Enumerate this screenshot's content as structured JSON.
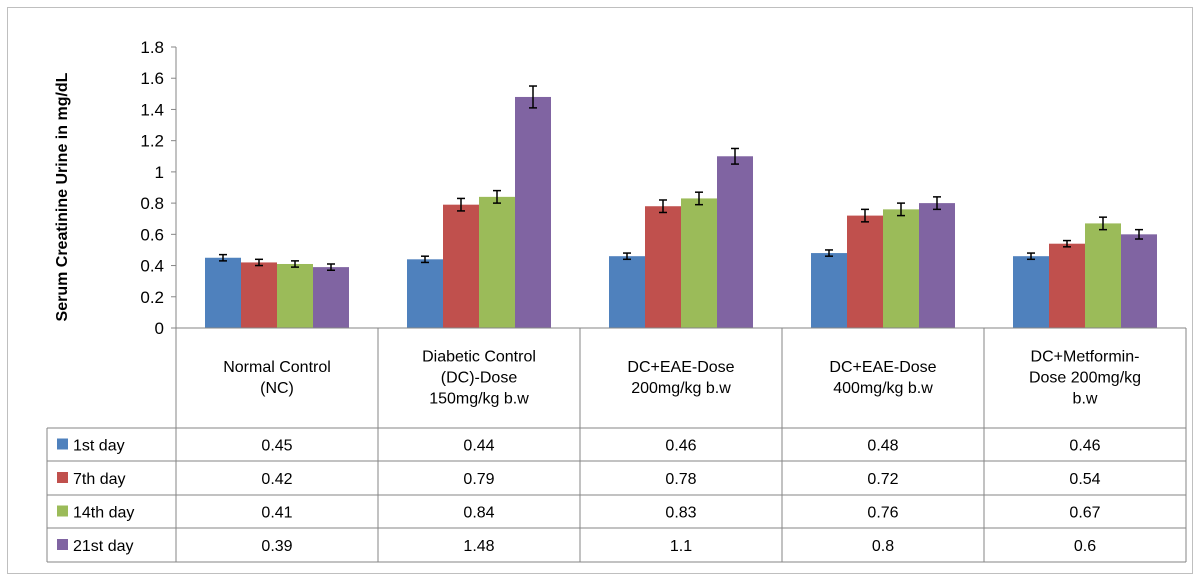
{
  "chart_data": {
    "type": "bar",
    "title": "",
    "ylabel": "Serum Creatinine Urine  in mg/dL",
    "xlabel": "",
    "ylim": [
      0,
      1.8
    ],
    "yticks": [
      0,
      0.2,
      0.4,
      0.6,
      0.8,
      1,
      1.2,
      1.4,
      1.6,
      1.8
    ],
    "ytick_labels": [
      "0",
      "0.2",
      "0.4",
      "0.6",
      "0.8",
      "1",
      "1.2",
      "1.4",
      "1.6",
      "1.8"
    ],
    "grid": false,
    "error_bars": true,
    "legend_placement": "data-table-left",
    "categories": [
      [
        "Normal Control",
        "(NC)"
      ],
      [
        "Diabetic Control",
        "(DC)-Dose",
        "150mg/kg b.w"
      ],
      [
        "DC+EAE-Dose",
        "200mg/kg b.w"
      ],
      [
        "DC+EAE-Dose",
        "400mg/kg b.w"
      ],
      [
        "DC+Metformin-",
        "Dose 200mg/kg",
        "b.w"
      ]
    ],
    "series": [
      {
        "name": "1st day",
        "color": "#4f81bd",
        "values": [
          0.45,
          0.44,
          0.46,
          0.48,
          0.46
        ],
        "value_labels": [
          "0.45",
          "0.44",
          "0.46",
          "0.48",
          "0.46"
        ]
      },
      {
        "name": "7th day",
        "color": "#c0504d",
        "values": [
          0.42,
          0.79,
          0.78,
          0.72,
          0.54
        ],
        "value_labels": [
          "0.42",
          "0.79",
          "0.78",
          "0.72",
          "0.54"
        ]
      },
      {
        "name": "14th day",
        "color": "#9bbb59",
        "values": [
          0.41,
          0.84,
          0.83,
          0.76,
          0.67
        ],
        "value_labels": [
          "0.41",
          "0.84",
          "0.83",
          "0.76",
          "0.67"
        ]
      },
      {
        "name": "21st day",
        "color": "#8064a2",
        "values": [
          0.39,
          1.48,
          1.1,
          0.8,
          0.6
        ],
        "value_labels": [
          "0.39",
          "1.48",
          "1.1",
          "0.8",
          "0.6"
        ]
      }
    ],
    "error_values": [
      [
        0.02,
        0.02,
        0.02,
        0.02,
        0.02
      ],
      [
        0.02,
        0.04,
        0.04,
        0.04,
        0.02
      ],
      [
        0.02,
        0.04,
        0.04,
        0.04,
        0.04
      ],
      [
        0.02,
        0.07,
        0.05,
        0.04,
        0.03
      ]
    ]
  }
}
